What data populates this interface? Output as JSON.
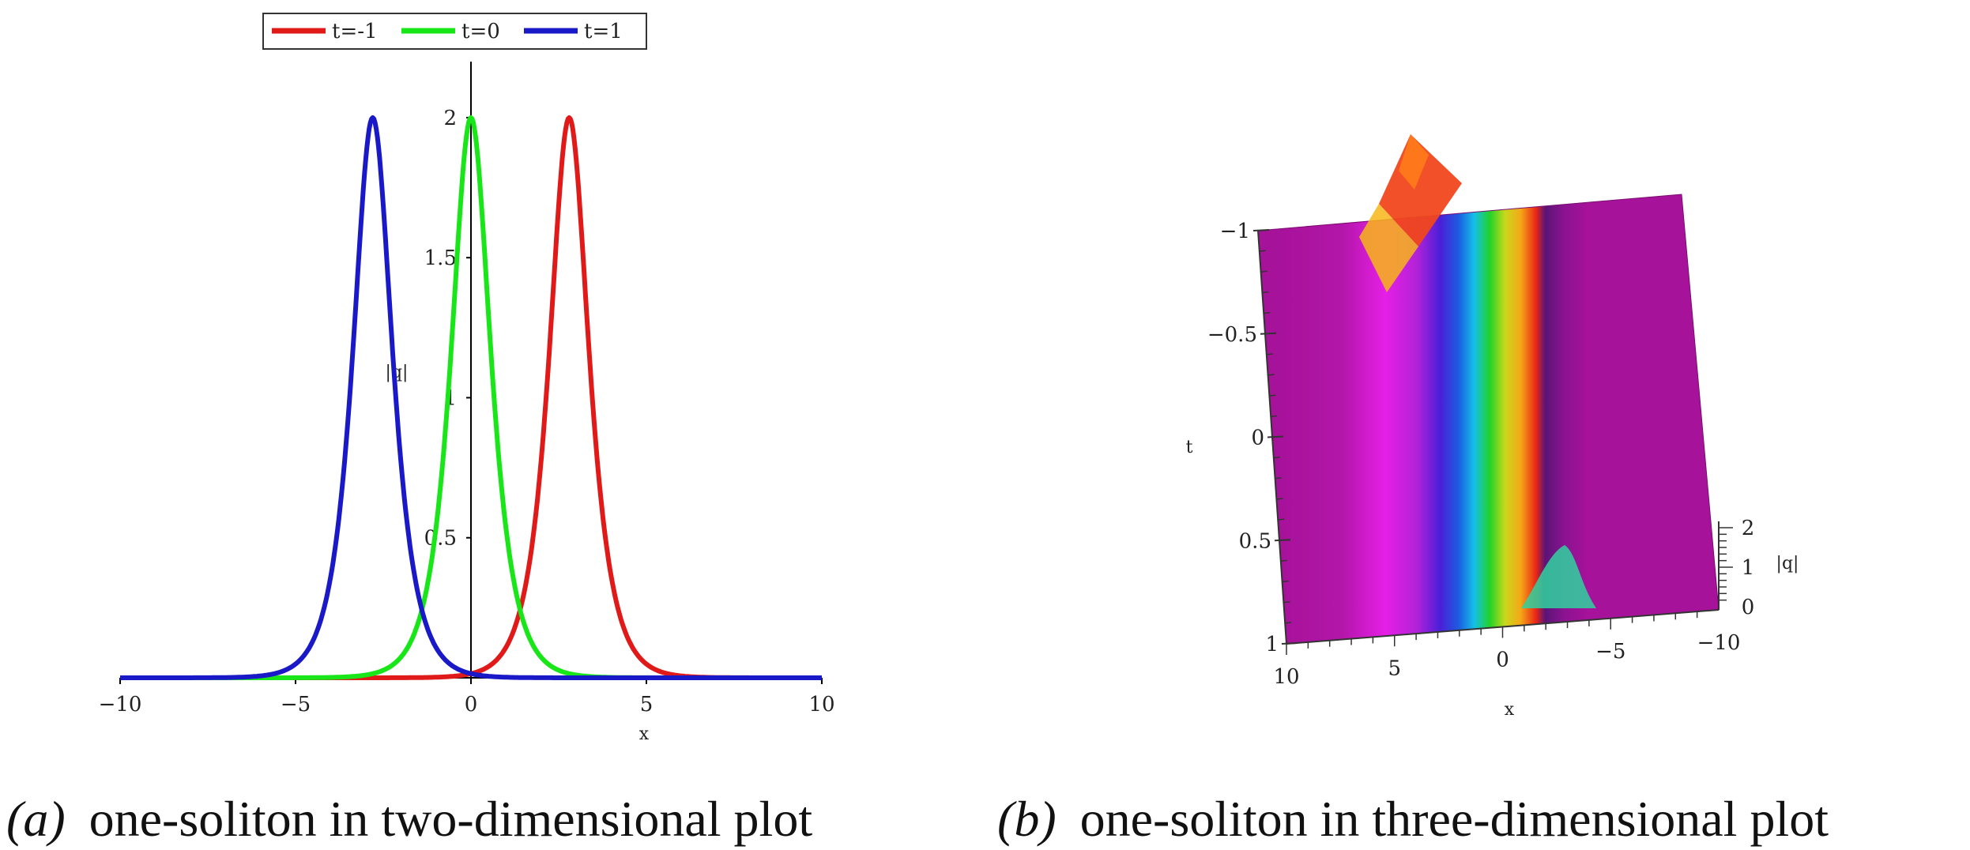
{
  "colors": {
    "t_minus_1": "#e01919",
    "t_0": "#19e619",
    "t_1": "#1a19c8",
    "surface_base": "#a7129a",
    "axis": "#000000"
  },
  "chart_data": [
    {
      "type": "line",
      "legend_position": "top-center",
      "xlabel": "x",
      "ylabel": "|q|",
      "xlim": [
        -10,
        10
      ],
      "ylim": [
        0,
        2.2
      ],
      "xticks": [
        "−10",
        "−5",
        "0",
        "5",
        "10"
      ],
      "yticks": [
        "0.5",
        "1",
        "1.5",
        "2"
      ],
      "legend": [
        "t=-1",
        "t=0",
        "t=1"
      ],
      "series": [
        {
          "name": "t=-1",
          "peak_x": 2.8,
          "peak": 2.0
        },
        {
          "name": "t=0",
          "peak_x": 0.0,
          "peak": 2.0
        },
        {
          "name": "t=1",
          "peak_x": -2.8,
          "peak": 2.0
        }
      ],
      "caption_label": "(a)",
      "caption_text": "one-soliton in two-dimensional plot"
    },
    {
      "type": "surface",
      "xlabel": "x",
      "ylabel": "t",
      "zlabel": "|q|",
      "xticks": [
        "10",
        "5",
        "0",
        "−5",
        "−10"
      ],
      "yticks": [
        "−1",
        "−0.5",
        "0",
        "0.5",
        "1"
      ],
      "zticks": [
        "2",
        "1",
        "0"
      ],
      "caption_label": "(b)",
      "caption_text": "one-soliton in three-dimensional plot"
    }
  ]
}
